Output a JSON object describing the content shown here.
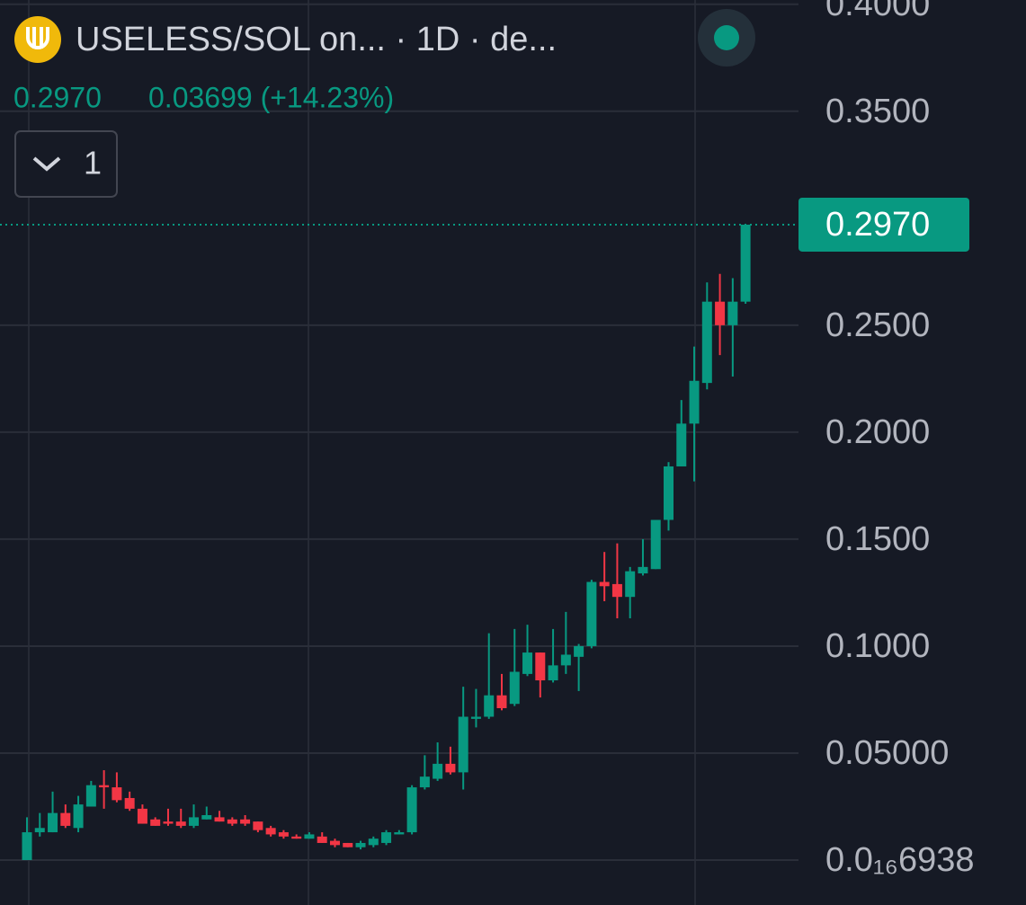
{
  "header": {
    "symbol_title": "USELESS/SOL on... · 1D · de...",
    "price": "0.2970",
    "change": "0.03699 (+14.23%)",
    "interval_button": "1"
  },
  "chart_data": {
    "type": "candlestick",
    "up_color": "#089981",
    "down_color": "#f23645",
    "grid": true,
    "ylim": [
      -0.021,
      0.402
    ],
    "yticks": [
      {
        "value": 0.4,
        "label": "0.4000"
      },
      {
        "value": 0.35,
        "label": "0.3500"
      },
      {
        "value": 0.25,
        "label": "0.2500"
      },
      {
        "value": 0.2,
        "label": "0.2000"
      },
      {
        "value": 0.15,
        "label": "0.1500"
      },
      {
        "value": 0.1,
        "label": "0.1000"
      },
      {
        "value": 0.05,
        "label": "0.05000"
      },
      {
        "value": 6.938e-18,
        "label": "0.0₁₆6938"
      }
    ],
    "last_price": {
      "value": 0.297,
      "label": "0.2970"
    },
    "open": [
      0.0,
      0.013,
      0.013,
      0.022,
      0.015,
      0.025,
      0.035,
      0.034,
      0.029,
      0.024,
      0.019,
      0.018,
      0.018,
      0.016,
      0.019,
      0.02,
      0.019,
      0.019,
      0.018,
      0.015,
      0.013,
      0.011,
      0.01,
      0.011,
      0.009,
      0.008,
      0.006,
      0.007,
      0.008,
      0.012,
      0.013,
      0.034,
      0.038,
      0.045,
      0.041,
      0.066,
      0.067,
      0.077,
      0.073,
      0.087,
      0.097,
      0.084,
      0.091,
      0.095,
      0.1,
      0.13,
      0.129,
      0.123,
      0.134,
      0.136,
      0.159,
      0.184,
      0.204,
      0.223,
      0.261,
      0.25,
      0.261
    ],
    "high": [
      0.02,
      0.022,
      0.032,
      0.026,
      0.03,
      0.037,
      0.042,
      0.041,
      0.032,
      0.026,
      0.02,
      0.024,
      0.024,
      0.026,
      0.025,
      0.023,
      0.02,
      0.021,
      0.018,
      0.016,
      0.014,
      0.012,
      0.013,
      0.013,
      0.01,
      0.008,
      0.009,
      0.011,
      0.014,
      0.014,
      0.035,
      0.049,
      0.055,
      0.053,
      0.081,
      0.08,
      0.106,
      0.087,
      0.108,
      0.11,
      0.097,
      0.108,
      0.116,
      0.101,
      0.131,
      0.144,
      0.148,
      0.137,
      0.15,
      0.159,
      0.186,
      0.215,
      0.24,
      0.27,
      0.274,
      0.272,
      0.297
    ],
    "low": [
      0.0,
      0.011,
      0.013,
      0.015,
      0.013,
      0.025,
      0.024,
      0.027,
      0.023,
      0.017,
      0.016,
      0.016,
      0.015,
      0.015,
      0.019,
      0.018,
      0.016,
      0.016,
      0.013,
      0.011,
      0.01,
      0.01,
      0.01,
      0.008,
      0.006,
      0.006,
      0.005,
      0.006,
      0.007,
      0.012,
      0.012,
      0.033,
      0.037,
      0.04,
      0.033,
      0.062,
      0.066,
      0.07,
      0.072,
      0.086,
      0.076,
      0.083,
      0.087,
      0.079,
      0.099,
      0.121,
      0.113,
      0.113,
      0.133,
      0.136,
      0.154,
      0.184,
      0.177,
      0.22,
      0.236,
      0.226,
      0.26
    ],
    "close": [
      0.013,
      0.015,
      0.022,
      0.016,
      0.026,
      0.035,
      0.034,
      0.028,
      0.024,
      0.017,
      0.016,
      0.017,
      0.016,
      0.02,
      0.021,
      0.018,
      0.017,
      0.017,
      0.014,
      0.012,
      0.011,
      0.01,
      0.012,
      0.008,
      0.007,
      0.006,
      0.008,
      0.01,
      0.013,
      0.013,
      0.034,
      0.039,
      0.045,
      0.041,
      0.067,
      0.067,
      0.077,
      0.071,
      0.088,
      0.097,
      0.084,
      0.091,
      0.096,
      0.1,
      0.13,
      0.128,
      0.123,
      0.135,
      0.137,
      0.159,
      0.184,
      0.204,
      0.224,
      0.261,
      0.25,
      0.261,
      0.297
    ]
  }
}
